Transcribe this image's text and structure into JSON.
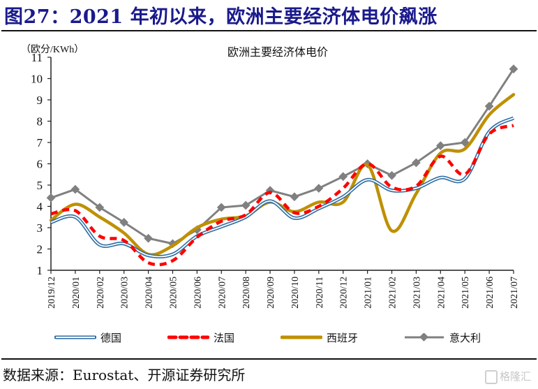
{
  "figure": {
    "title": "图27：2021 年初以来，欧洲主要经济体电价飙涨",
    "source": "数据来源：Eurostat、开源证券研究所",
    "watermark": "格隆汇"
  },
  "colors": {
    "title": "#1a1a8c",
    "germany": "#2e6da4",
    "france": "#ff0000",
    "spain": "#bf9000",
    "italy": "#808080"
  },
  "chart_data": {
    "type": "line",
    "title": "欧洲主要经济体电价",
    "ylabel": "（欧分/KWh）",
    "xlabel": "",
    "ylim": [
      1,
      11
    ],
    "yticks": [
      1,
      2,
      3,
      4,
      5,
      6,
      7,
      8,
      9,
      10,
      11
    ],
    "grid": false,
    "legend_position": "bottom",
    "x": [
      "2019/12",
      "2020/01",
      "2020/02",
      "2020/03",
      "2020/04",
      "2020/05",
      "2020/06",
      "2020/07",
      "2020/08",
      "2020/09",
      "2020/10",
      "2020/11",
      "2020/12",
      "2021/01",
      "2021/02",
      "2021/03",
      "2021/04",
      "2021/05",
      "2021/06",
      "2021/07"
    ],
    "series": [
      {
        "name": "德国",
        "key": "germany",
        "style": "double-line",
        "values": [
          3.25,
          3.5,
          2.2,
          2.25,
          1.7,
          1.75,
          2.6,
          3.05,
          3.5,
          4.25,
          3.45,
          3.9,
          4.45,
          5.25,
          4.75,
          4.85,
          5.35,
          5.3,
          7.5,
          8.15
        ]
      },
      {
        "name": "法国",
        "key": "france",
        "style": "dashed",
        "values": [
          3.65,
          3.8,
          2.6,
          2.4,
          1.35,
          1.45,
          2.55,
          3.3,
          3.6,
          4.65,
          3.7,
          4.0,
          4.85,
          6.0,
          4.9,
          4.95,
          6.35,
          5.5,
          7.4,
          7.8
        ]
      },
      {
        "name": "西班牙",
        "key": "spain",
        "style": "solid-thick",
        "values": [
          3.35,
          4.1,
          3.5,
          2.75,
          1.75,
          2.15,
          3.0,
          3.4,
          3.55,
          4.2,
          3.75,
          4.2,
          4.2,
          5.95,
          2.85,
          4.6,
          6.5,
          6.7,
          8.3,
          9.25
        ]
      },
      {
        "name": "意大利",
        "key": "italy",
        "style": "line-diamond",
        "values": [
          4.4,
          4.8,
          3.95,
          3.25,
          2.5,
          2.25,
          2.9,
          3.95,
          4.05,
          4.75,
          4.45,
          4.85,
          5.4,
          6.0,
          5.45,
          6.05,
          6.85,
          7.0,
          8.7,
          10.45
        ]
      }
    ]
  }
}
